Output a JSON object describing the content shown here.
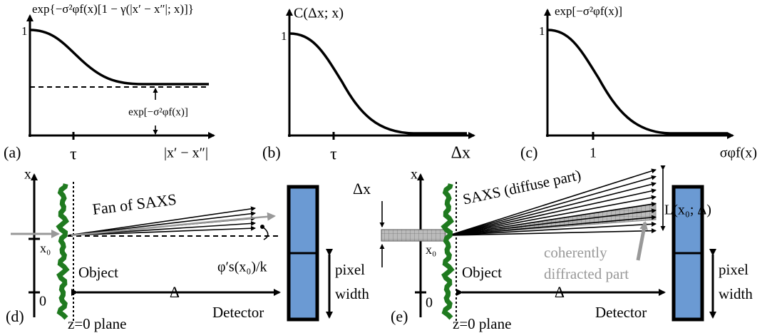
{
  "panel_a": {
    "label": "(a)",
    "y_axis_label": "exp{−σ²φf(x)[1 − γ(|x′ − x″|; x)]}",
    "y_max": "1",
    "x_tick": "τ",
    "x_axis_label": "|x′ − x″|",
    "level_label": "exp[−σ²φf(x)]"
  },
  "panel_b": {
    "label": "(b)",
    "y_axis_label": "C(Δx; x)",
    "y_max": "1",
    "x_tick": "τ",
    "x_axis_label": "Δx"
  },
  "panel_c": {
    "label": "(c)",
    "y_axis_label": "exp[−σ²φf(x)]",
    "y_max": "1",
    "x_tick": "1",
    "x_axis_label": "σφf(x)"
  },
  "panel_d": {
    "label": "(d)",
    "x_axis": "x",
    "x0": "x₀",
    "zero": "0",
    "fan_label": "Fan of SAXS",
    "angle_label": "φ′s(x₀)/k",
    "object": "Object",
    "distance": "Δ",
    "pixel_width": [
      "pixel",
      "width"
    ],
    "detector": "Detector",
    "plane": "z=0 plane"
  },
  "panel_e": {
    "label": "(e)",
    "dx": "Δx",
    "x_axis": "x",
    "x0": "x₀",
    "zero": "0",
    "fan_label": "SAXS (diffuse part)",
    "length_label": "L(x₀; Δ)",
    "coherent_label": [
      "coherently",
      "diffracted part"
    ],
    "object": "Object",
    "distance": "Δ",
    "pixel_width": [
      "pixel",
      "width"
    ],
    "detector": "Detector",
    "plane": "z=0 plane"
  }
}
